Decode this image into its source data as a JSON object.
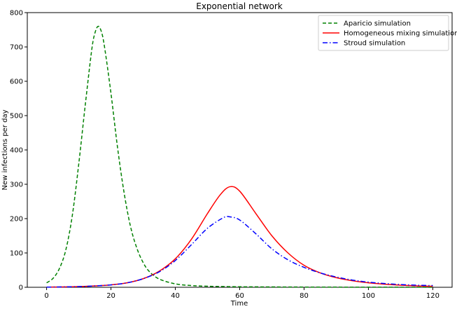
{
  "chart_data": {
    "type": "line",
    "title": "Exponential network",
    "xlabel": "Time",
    "ylabel": "New infections per day",
    "xlim": [
      -6,
      126
    ],
    "ylim": [
      0,
      800
    ],
    "xticks": [
      0,
      20,
      40,
      60,
      80,
      100,
      120
    ],
    "yticks": [
      0,
      100,
      200,
      300,
      400,
      500,
      600,
      700,
      800
    ],
    "grid": false,
    "legend_position": "top-right",
    "series": [
      {
        "name": "Aparicio simulation",
        "color": "#008000",
        "linestyle": "dashed",
        "x": [
          0,
          2,
          4,
          6,
          8,
          10,
          12,
          14,
          15,
          16,
          17,
          18,
          20,
          22,
          24,
          26,
          28,
          30,
          32,
          35,
          40,
          45,
          50,
          60,
          70,
          80,
          90,
          100,
          110,
          120
        ],
        "y": [
          13,
          26,
          55,
          110,
          210,
          360,
          530,
          690,
          740,
          760,
          745,
          700,
          565,
          410,
          280,
          180,
          115,
          72,
          45,
          24,
          10,
          5,
          3,
          1.5,
          1,
          0.6,
          0.4,
          0.3,
          0.2,
          0.1
        ]
      },
      {
        "name": "Homogeneous mixing simulation",
        "color": "#ff0000",
        "linestyle": "solid",
        "x": [
          0,
          5,
          10,
          15,
          20,
          25,
          30,
          35,
          40,
          45,
          50,
          54,
          57,
          60,
          65,
          70,
          75,
          80,
          85,
          90,
          95,
          100,
          105,
          110,
          115,
          120
        ],
        "y": [
          0.5,
          1,
          2,
          4,
          7,
          13,
          25,
          47,
          83,
          140,
          215,
          270,
          293,
          280,
          215,
          150,
          100,
          64,
          42,
          28,
          19,
          13,
          9,
          6,
          4,
          3
        ]
      },
      {
        "name": "Stroud simulation",
        "color": "#0000ff",
        "linestyle": "dashdot",
        "x": [
          0,
          5,
          10,
          15,
          20,
          25,
          30,
          35,
          40,
          45,
          50,
          55,
          57,
          60,
          65,
          70,
          75,
          80,
          85,
          90,
          95,
          100,
          105,
          110,
          115,
          120
        ],
        "y": [
          0.5,
          1,
          2,
          4,
          7,
          13,
          25,
          45,
          78,
          124,
          172,
          203,
          205,
          196,
          156,
          112,
          80,
          58,
          42,
          30,
          21,
          15,
          11,
          8,
          6,
          5
        ]
      }
    ]
  }
}
